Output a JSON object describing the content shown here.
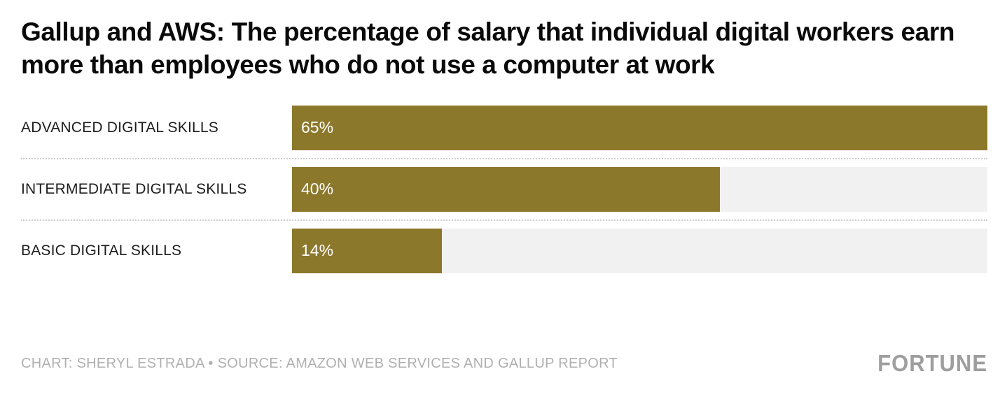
{
  "title": "Gallup and AWS: The percentage of salary that individual digital workers earn more than employees who do not use a computer at work",
  "footer": {
    "credit": "CHART: SHERYL ESTRADA • SOURCE: AMAZON WEB SERVICES AND GALLUP REPORT",
    "brand": "FORTUNE"
  },
  "colors": {
    "bar": "#8c782b",
    "track": "#f1f1f1",
    "separator": "#cccccc",
    "credit_text": "#b0b0b0",
    "brand_text": "#9e9e9e"
  },
  "chart_data": {
    "type": "bar",
    "orientation": "horizontal",
    "title": "Gallup and AWS: The percentage of salary that individual digital workers earn more than employees who do not use a computer at work",
    "categories": [
      "ADVANCED DIGITAL SKILLS",
      "INTERMEDIATE DIGITAL SKILLS",
      "BASIC DIGITAL SKILLS"
    ],
    "values": [
      65,
      40,
      14
    ],
    "value_labels": [
      "65%",
      "40%",
      "14%"
    ],
    "unit": "%",
    "axis_max": 65,
    "grid": false,
    "legend": false,
    "value_label_position": "inside-left"
  }
}
